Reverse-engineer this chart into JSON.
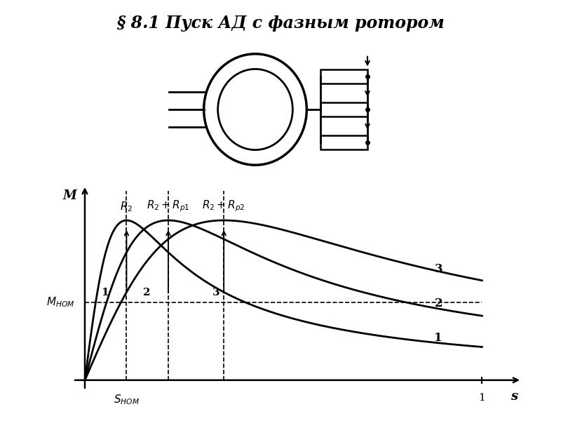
{
  "title": "§ 8.1 Пуск АД с фазным ротором",
  "title_fontsize": 17,
  "background_color": "#ffffff",
  "mnom": 0.4,
  "snom": 0.105,
  "s_peak1": 0.105,
  "s_peak2": 0.21,
  "s_peak3": 0.35,
  "m_peak1": 0.82,
  "m_peak2": 0.82,
  "m_peak3": 0.82
}
